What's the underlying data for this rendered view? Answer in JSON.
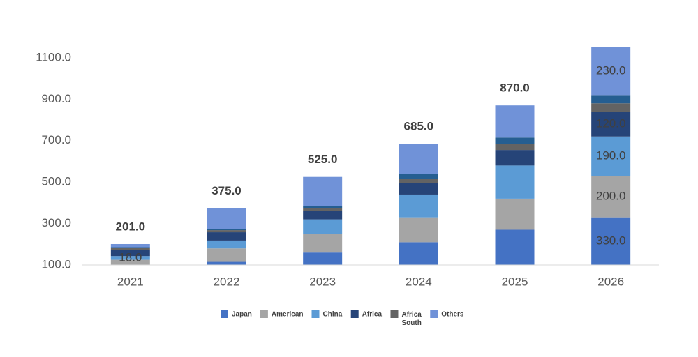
{
  "chart_data": {
    "type": "stacked_bar",
    "categories": [
      "2021",
      "2022",
      "2023",
      "2024",
      "2025",
      "2026"
    ],
    "series": [
      {
        "name": "Japan",
        "color": "#4472c4",
        "values": [
          100,
          115,
          160,
          210,
          270,
          330
        ],
        "value_labels": [
          null,
          null,
          null,
          null,
          null,
          "330.0"
        ]
      },
      {
        "name": "American",
        "color": "#a5a5a5",
        "values": [
          25,
          65,
          90,
          120,
          150,
          200
        ],
        "value_labels": [
          null,
          null,
          null,
          null,
          null,
          "200.0"
        ]
      },
      {
        "name": "China",
        "color": "#5b9bd5",
        "values": [
          18,
          38,
          70,
          110,
          160,
          190
        ],
        "value_labels": [
          "18.0",
          null,
          null,
          null,
          null,
          "190.0"
        ]
      },
      {
        "name": "Africa",
        "color": "#264478",
        "values": [
          30,
          40,
          40,
          55,
          75,
          120
        ],
        "value_labels": [
          null,
          null,
          null,
          null,
          null,
          "120.0"
        ]
      },
      {
        "name": "Africa South",
        "color": "#636363",
        "values": [
          8,
          10,
          15,
          20,
          30,
          40
        ],
        "value_labels": [
          null,
          null,
          null,
          null,
          null,
          null
        ]
      },
      {
        "name": null,
        "color": "#255e91",
        "values": [
          5,
          7,
          10,
          25,
          30,
          40
        ],
        "value_labels": [
          null,
          null,
          null,
          null,
          null,
          null
        ]
      },
      {
        "name": "Others",
        "color": "#7092d8",
        "values": [
          15,
          100,
          140,
          145,
          155,
          230
        ],
        "value_labels": [
          null,
          null,
          null,
          null,
          null,
          "230.0"
        ]
      }
    ],
    "totals": [
      {
        "value": 201,
        "label": "201.0"
      },
      {
        "value": 375,
        "label": "375.0"
      },
      {
        "value": 525,
        "label": "525.0"
      },
      {
        "value": 685,
        "label": "685.0"
      },
      {
        "value": 870,
        "label": "870.0"
      },
      null
    ],
    "ylim": [
      100,
      1150
    ],
    "yticks": [
      {
        "value": 100,
        "label": "100.0"
      },
      {
        "value": 300,
        "label": "300.0"
      },
      {
        "value": 500,
        "label": "500.0"
      },
      {
        "value": 700,
        "label": "700.0"
      },
      {
        "value": 900,
        "label": "900.0"
      },
      {
        "value": 1100,
        "label": "1100.0"
      }
    ],
    "grid": false
  }
}
